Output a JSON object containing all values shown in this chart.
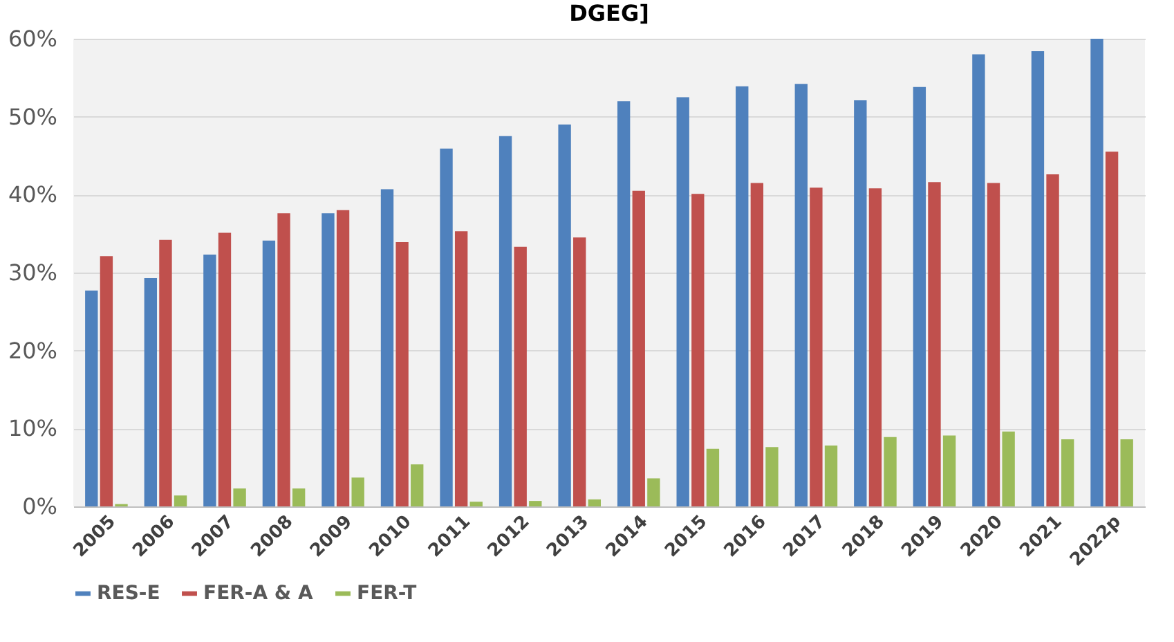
{
  "chart_data": {
    "type": "bar",
    "title": "DGEG]",
    "categories": [
      "2005",
      "2006",
      "2007",
      "2008",
      "2009",
      "2010",
      "2011",
      "2012",
      "2013",
      "2014",
      "2015",
      "2016",
      "2017",
      "2018",
      "2019",
      "2020",
      "2021",
      "2022p"
    ],
    "series": [
      {
        "name": "RES-E",
        "color": "#4f81bd",
        "values": [
          27.7,
          29.3,
          32.3,
          34.1,
          37.6,
          40.7,
          45.9,
          47.5,
          49.0,
          52.0,
          52.5,
          53.9,
          54.2,
          52.1,
          53.8,
          58.0,
          58.4,
          60.0
        ]
      },
      {
        "name": "FER-A & A",
        "color": "#c0504d",
        "values": [
          32.1,
          34.2,
          35.1,
          37.6,
          38.0,
          33.9,
          35.3,
          33.3,
          34.5,
          40.5,
          40.1,
          41.5,
          40.9,
          40.8,
          41.6,
          41.5,
          42.6,
          45.5
        ]
      },
      {
        "name": "FER-T",
        "color": "#9bbb59",
        "values": [
          0.3,
          1.4,
          2.3,
          2.3,
          3.7,
          5.4,
          0.6,
          0.7,
          0.9,
          3.6,
          7.4,
          7.6,
          7.8,
          8.9,
          9.1,
          9.6,
          8.6,
          8.6
        ]
      }
    ],
    "ylim": [
      0,
      60
    ],
    "yticks": [
      {
        "value": 0,
        "label": "0%"
      },
      {
        "value": 10,
        "label": "10%"
      },
      {
        "value": 20,
        "label": "20%"
      },
      {
        "value": 30,
        "label": "30%"
      },
      {
        "value": 40,
        "label": "40%"
      },
      {
        "value": 50,
        "label": "50%"
      },
      {
        "value": 60,
        "label": "60%"
      }
    ],
    "grid": "y",
    "legend": "bottom left"
  }
}
